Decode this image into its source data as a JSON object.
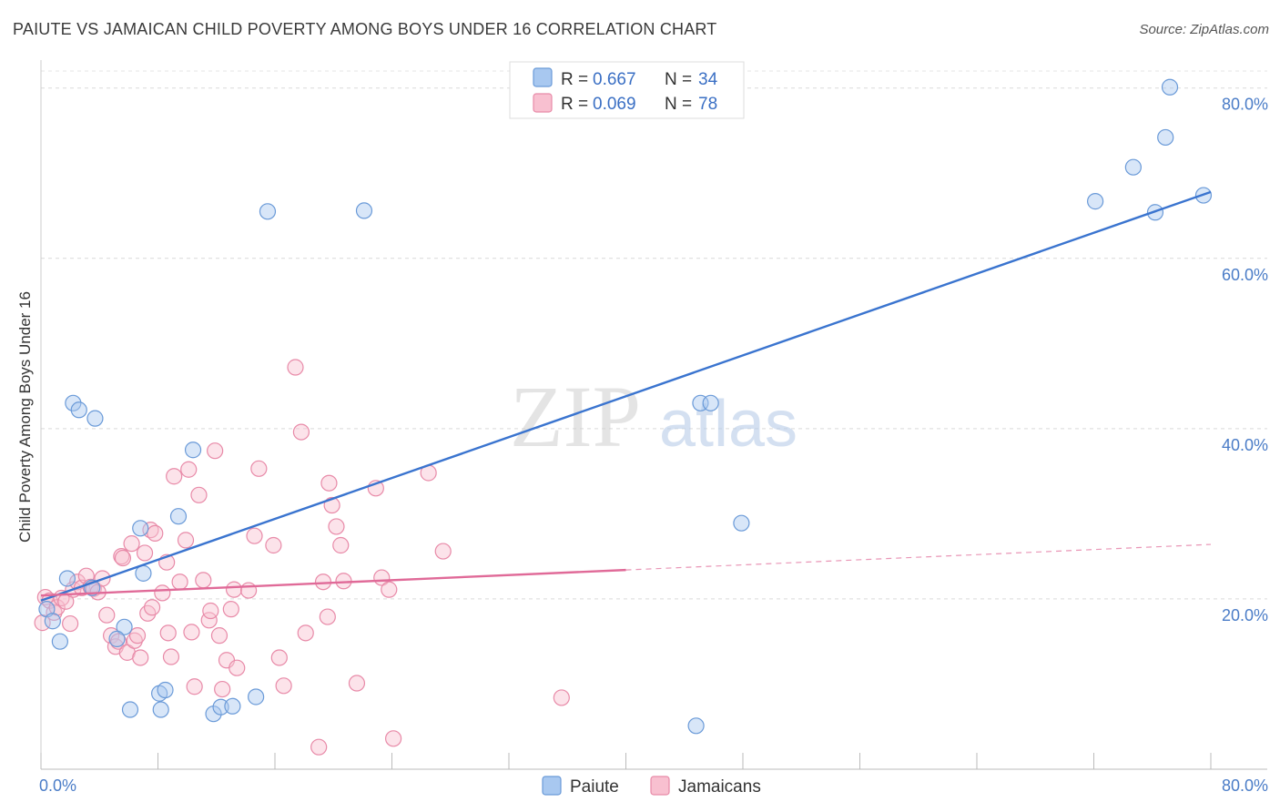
{
  "title": "PAIUTE VS JAMAICAN CHILD POVERTY AMONG BOYS UNDER 16 CORRELATION CHART",
  "source": "Source: ZipAtlas.com",
  "watermark": {
    "zip": "ZIP",
    "atlas": "atlas"
  },
  "legend": {
    "rows": [
      {
        "r_label": "R =",
        "r_value": "0.667",
        "n_label": "N =",
        "n_value": "34",
        "color": "#a8c8f0",
        "stroke": "#6a9ad8"
      },
      {
        "r_label": "R =",
        "r_value": "0.069",
        "n_label": "N =",
        "n_value": "78",
        "color": "#f8c0d0",
        "stroke": "#e88aa8"
      }
    ]
  },
  "bottom_legend": {
    "items": [
      {
        "label": "Paiute",
        "color": "#a8c8f0",
        "stroke": "#6a9ad8"
      },
      {
        "label": "Jamaicans",
        "color": "#f8c0d0",
        "stroke": "#e88aa8"
      }
    ]
  },
  "chart_data": {
    "type": "scatter",
    "title": "PAIUTE VS JAMAICAN CHILD POVERTY AMONG BOYS UNDER 16 CORRELATION CHART",
    "xlabel": "",
    "ylabel": "Child Poverty Among Boys Under 16",
    "xlim": [
      0,
      80
    ],
    "ylim": [
      0,
      82
    ],
    "x_tick_labels": [
      "0.0%",
      "80.0%"
    ],
    "y_ticks": [
      20,
      40,
      60,
      80
    ],
    "y_tick_labels": [
      "20.0%",
      "40.0%",
      "60.0%",
      "80.0%"
    ],
    "grid": true,
    "series": [
      {
        "name": "Paiute",
        "color": "#a8c8f0",
        "stroke": "#6a9ad8",
        "trend": {
          "x": [
            0,
            80
          ],
          "y": [
            19.8,
            67.8
          ],
          "color": "#3a74cf"
        },
        "x": [
          0.4,
          0.8,
          1.3,
          1.8,
          2.2,
          2.6,
          3.7,
          3.5,
          5.7,
          5.2,
          6.1,
          6.8,
          7.0,
          8.1,
          8.2,
          8.5,
          9.4,
          10.4,
          11.8,
          12.3,
          13.1,
          14.7,
          15.5,
          22.1,
          44.8,
          45.1,
          45.8,
          47.9,
          72.1,
          74.7,
          76.2,
          76.9,
          77.2,
          79.5
        ],
        "y": [
          18.8,
          17.4,
          15.0,
          22.4,
          43.0,
          42.2,
          41.2,
          21.3,
          16.7,
          15.3,
          7.0,
          28.3,
          23.0,
          8.9,
          7.0,
          9.3,
          29.7,
          37.5,
          6.5,
          7.3,
          7.4,
          8.5,
          65.5,
          65.6,
          5.1,
          43.0,
          43.0,
          28.9,
          66.7,
          70.7,
          65.4,
          74.2,
          80.1,
          67.4
        ]
      },
      {
        "name": "Jamaicans",
        "color": "#f8c0d0",
        "stroke": "#e88aa8",
        "trend": {
          "x": [
            0,
            40
          ],
          "y": [
            20.4,
            23.4
          ],
          "dashed_to": [
            80,
            26.4
          ],
          "color": "#e06a98"
        },
        "x": [
          0.1,
          0.3,
          0.6,
          0.9,
          1.1,
          1.4,
          1.7,
          2.0,
          2.2,
          2.5,
          2.8,
          3.1,
          3.4,
          3.6,
          3.9,
          4.2,
          4.5,
          4.8,
          5.1,
          5.3,
          5.5,
          5.6,
          5.9,
          6.2,
          6.4,
          6.6,
          6.8,
          7.1,
          7.3,
          7.5,
          7.6,
          7.8,
          8.3,
          8.6,
          8.7,
          8.9,
          9.1,
          9.5,
          9.9,
          10.1,
          10.3,
          10.5,
          10.8,
          11.1,
          11.5,
          11.6,
          11.9,
          12.2,
          12.4,
          12.7,
          13.0,
          13.2,
          13.4,
          14.2,
          14.6,
          14.9,
          15.9,
          16.3,
          16.6,
          17.4,
          17.8,
          18.1,
          19.0,
          19.3,
          19.6,
          19.7,
          19.9,
          20.2,
          20.5,
          20.7,
          21.6,
          22.9,
          23.3,
          23.8,
          24.1,
          26.5,
          27.5,
          35.6
        ],
        "y": [
          17.2,
          20.2,
          19.8,
          18.4,
          19.0,
          20.1,
          19.7,
          17.1,
          21.1,
          22.0,
          21.3,
          22.7,
          21.4,
          21.2,
          20.8,
          22.4,
          18.1,
          15.7,
          14.4,
          15.0,
          25.0,
          24.8,
          13.7,
          26.5,
          15.1,
          15.7,
          13.1,
          25.4,
          18.3,
          28.1,
          19.0,
          27.7,
          20.7,
          24.3,
          16.0,
          13.2,
          34.4,
          22.0,
          26.9,
          35.2,
          16.1,
          9.7,
          32.2,
          22.2,
          17.5,
          18.6,
          37.4,
          15.7,
          9.4,
          12.8,
          18.8,
          21.1,
          11.9,
          21.0,
          27.4,
          35.3,
          26.3,
          13.1,
          9.8,
          47.2,
          39.6,
          16.0,
          2.6,
          22.0,
          17.9,
          33.6,
          31.0,
          28.5,
          26.3,
          22.1,
          10.1,
          33.0,
          22.5,
          21.1,
          3.6,
          34.8,
          25.6,
          8.4
        ]
      }
    ]
  }
}
